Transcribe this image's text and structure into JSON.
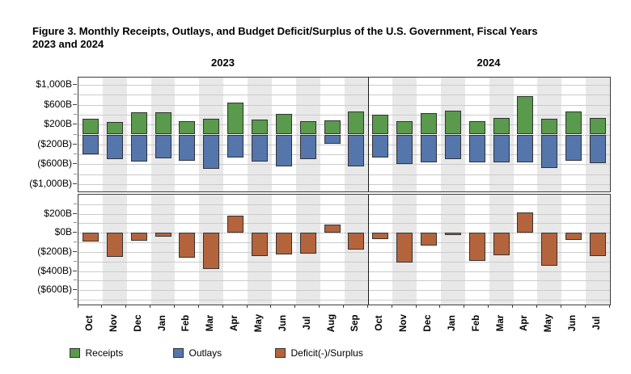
{
  "title_line1": "Figure 3. Monthly Receipts, Outlays, and Budget Deficit/Surplus of the U.S. Government, Fiscal Years",
  "title_line2": "2023 and 2024",
  "colors": {
    "receipts": "#599a4c",
    "outlays": "#5476ab",
    "deficit_surplus": "#b4643c",
    "bar_border": "#333333",
    "stripe": "#e8e8e8",
    "gridline": "#cbcbcb",
    "panel_border": "#3d3d3d"
  },
  "legend": [
    {
      "label": "Receipts",
      "color": "#599a4c",
      "series": "receipts"
    },
    {
      "label": "Outlays",
      "color": "#5476ab",
      "series": "outlays"
    },
    {
      "label": "Deficit(-)/Surplus",
      "color": "#b4643c",
      "series": "deficit_surplus"
    }
  ],
  "chart_data": {
    "type": "bar",
    "title": "Figure 3. Monthly Receipts, Outlays, and Budget Deficit/Surplus of the U.S. Government, Fiscal Years 2023 and 2024",
    "unit": "billions of dollars",
    "legend_position": "bottom",
    "grid": "on",
    "groups": [
      {
        "year": "2023",
        "months": [
          "Oct",
          "Nov",
          "Dec",
          "Jan",
          "Feb",
          "Mar",
          "Apr",
          "May",
          "Jun",
          "Jul",
          "Aug",
          "Sep"
        ],
        "receipts": [
          319,
          252,
          455,
          447,
          262,
          313,
          639,
          307,
          418,
          276,
          283,
          468
        ],
        "outlays": [
          -406,
          -501,
          -540,
          -486,
          -525,
          -691,
          -462,
          -548,
          -646,
          -497,
          -194,
          -638
        ],
        "deficit_surplus": [
          -88,
          -249,
          -85,
          -39,
          -262,
          -378,
          176,
          -240,
          -228,
          -221,
          89,
          -171
        ]
      },
      {
        "year": "2024",
        "months": [
          "Oct",
          "Nov",
          "Dec",
          "Jan",
          "Feb",
          "Mar",
          "Apr",
          "May",
          "Jun",
          "Jul"
        ],
        "receipts": [
          403,
          275,
          429,
          477,
          271,
          332,
          776,
          324,
          466,
          330
        ],
        "outlays": [
          -470,
          -589,
          -559,
          -499,
          -567,
          -568,
          -567,
          -671,
          -537,
          -574
        ],
        "deficit_surplus": [
          -67,
          -314,
          -129,
          -22,
          -296,
          -236,
          210,
          -347,
          -71,
          -244
        ]
      }
    ],
    "top_panel": {
      "series": [
        "receipts",
        "outlays"
      ],
      "ylim": [
        -1150,
        1150
      ],
      "gridline_step": 200,
      "yticks": [
        {
          "value": 1000,
          "label": "$1,000B"
        },
        {
          "value": 600,
          "label": "$600B"
        },
        {
          "value": 200,
          "label": "$200B"
        },
        {
          "value": -200,
          "label": "($200B)"
        },
        {
          "value": -600,
          "label": "($600B)"
        },
        {
          "value": -1000,
          "label": "($1,000B)"
        }
      ]
    },
    "bottom_panel": {
      "series": [
        "deficit_surplus"
      ],
      "ylim": [
        -750,
        400
      ],
      "gridline_step": 100,
      "yticks": [
        {
          "value": 200,
          "label": "$200B"
        },
        {
          "value": 0,
          "label": "$0B"
        },
        {
          "value": -200,
          "label": "($200B)"
        },
        {
          "value": -400,
          "label": "($400B)"
        },
        {
          "value": -600,
          "label": "($600B)"
        }
      ]
    }
  }
}
